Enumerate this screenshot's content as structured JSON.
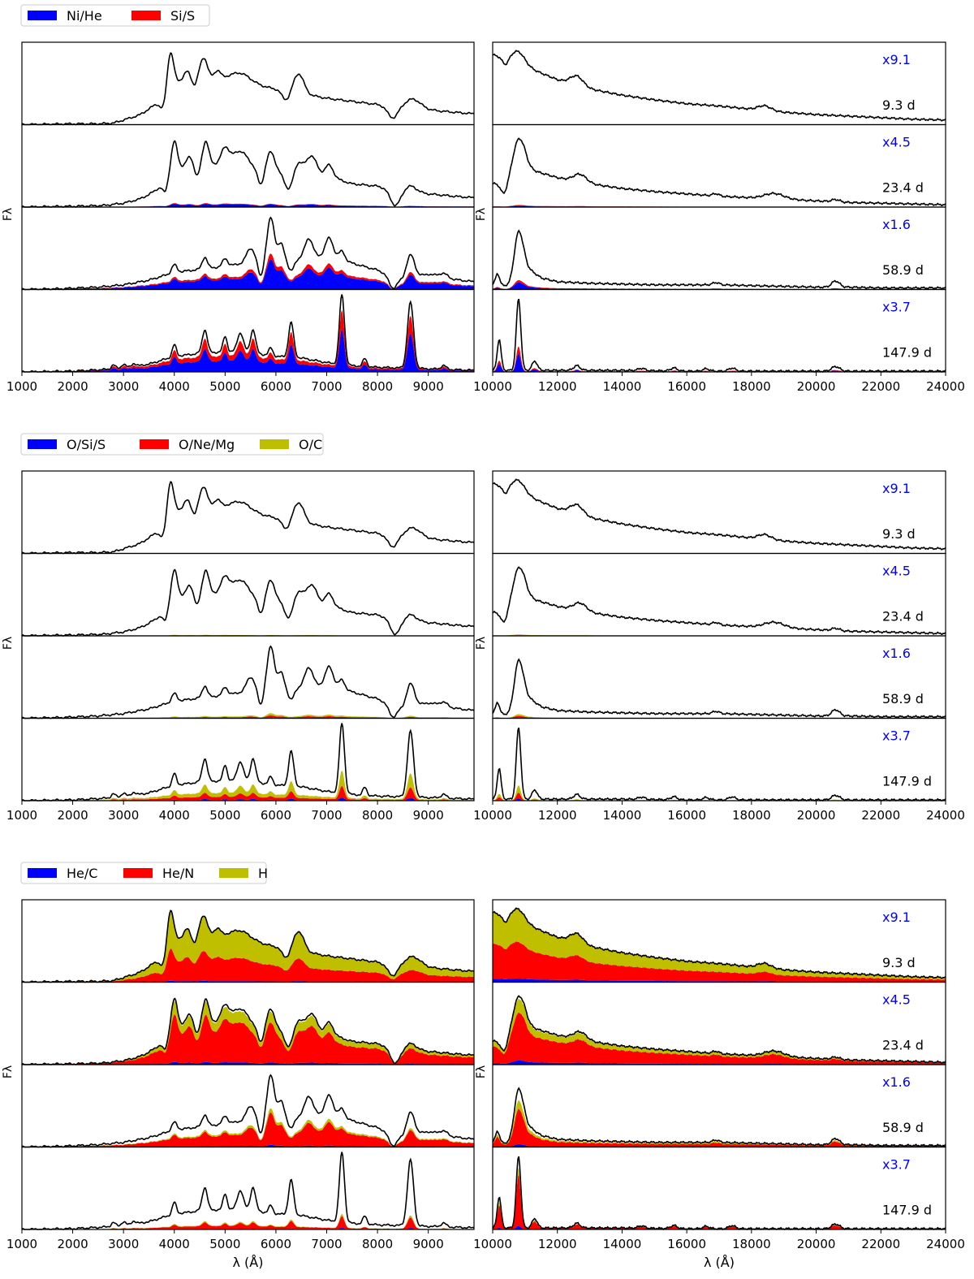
{
  "chart_data": {
    "type": "area",
    "description_text": {
      "ylabel": "Fλ",
      "xlabel": "λ (Å)"
    },
    "epochs": [
      {
        "epoch": "9.3 d",
        "scale": "x9.1"
      },
      {
        "epoch": "23.4 d",
        "scale": "x4.5"
      },
      {
        "epoch": "58.9 d",
        "scale": "x1.6"
      },
      {
        "epoch": "147.9 d",
        "scale": "x3.7"
      }
    ],
    "optical_axis": {
      "xlim": [
        1000,
        9900
      ],
      "ticks": [
        1000,
        2000,
        3000,
        4000,
        5000,
        6000,
        7000,
        8000,
        9000
      ]
    },
    "nir_axis": {
      "xlim": [
        10000,
        24000
      ],
      "ticks": [
        10000,
        12000,
        14000,
        16000,
        18000,
        20000,
        22000,
        24000
      ]
    },
    "colors": {
      "blue": "#0000ff",
      "red": "#ff0000",
      "olive": "#bfbf00",
      "line": "#000000",
      "scale_text": "#0000ff"
    },
    "groups": [
      {
        "legend": [
          {
            "label": "Ni/He",
            "color": "#0000ff"
          },
          {
            "label": "Si/S",
            "color": "#ff0000"
          }
        ],
        "stack_fraction": [
          [
            [
              0,
              0
            ],
            [
              0,
              0
            ]
          ],
          [
            [
              0.05,
              0.01
            ],
            [
              0.02,
              0.01
            ]
          ],
          [
            [
              0.42,
              0.08
            ],
            [
              0.12,
              0.04
            ]
          ],
          [
            [
              0.55,
              0.25
            ],
            [
              0.25,
              0.1
            ]
          ]
        ],
        "show_xlabel": false
      },
      {
        "legend": [
          {
            "label": "O/Si/S",
            "color": "#0000ff"
          },
          {
            "label": "O/Ne/Mg",
            "color": "#ff0000"
          },
          {
            "label": "O/C",
            "color": "#bfbf00"
          }
        ],
        "stack_fraction": [
          [
            [
              0,
              0,
              0
            ],
            [
              0,
              0,
              0
            ]
          ],
          [
            [
              0,
              0.005,
              0.01
            ],
            [
              0,
              0.01,
              0.01
            ]
          ],
          [
            [
              0.01,
              0.03,
              0.03
            ],
            [
              0.01,
              0.03,
              0.03
            ]
          ],
          [
            [
              0.04,
              0.15,
              0.2
            ],
            [
              0.03,
              0.08,
              0.1
            ]
          ]
        ],
        "show_xlabel": false
      },
      {
        "legend": [
          {
            "label": "He/C",
            "color": "#0000ff"
          },
          {
            "label": "He/N",
            "color": "#ff0000"
          },
          {
            "label": "H",
            "color": "#bfbf00"
          }
        ],
        "stack_fraction": [
          [
            [
              0.02,
              0.45,
              0.53
            ],
            [
              0.05,
              0.5,
              0.45
            ]
          ],
          [
            [
              0.04,
              0.72,
              0.2
            ],
            [
              0.06,
              0.7,
              0.2
            ]
          ],
          [
            [
              0.03,
              0.45,
              0.06
            ],
            [
              0.05,
              0.6,
              0.15
            ]
          ],
          [
            [
              0.02,
              0.15,
              0.03
            ],
            [
              0.05,
              0.7,
              0.1
            ]
          ]
        ],
        "show_xlabel": true
      }
    ],
    "spectra_optical": [
      {
        "continuum": [
          [
            1000,
            0.0
          ],
          [
            2000,
            0.01
          ],
          [
            2500,
            0.01
          ],
          [
            2800,
            0.02
          ],
          [
            3000,
            0.06
          ],
          [
            3300,
            0.12
          ],
          [
            3500,
            0.2
          ],
          [
            3700,
            0.3
          ],
          [
            4000,
            0.55
          ],
          [
            4500,
            0.62
          ],
          [
            5000,
            0.58
          ],
          [
            5500,
            0.52
          ],
          [
            6000,
            0.46
          ],
          [
            6500,
            0.4
          ],
          [
            7000,
            0.34
          ],
          [
            7500,
            0.3
          ],
          [
            8000,
            0.26
          ],
          [
            8500,
            0.22
          ],
          [
            9000,
            0.19
          ],
          [
            9500,
            0.16
          ],
          [
            9900,
            0.14
          ]
        ],
        "lines": [
          [
            3920,
            0.45,
            60
          ],
          [
            4250,
            0.1,
            60
          ],
          [
            4580,
            0.25,
            70
          ],
          [
            4850,
            0.1,
            60
          ],
          [
            5300,
            0.12,
            200
          ],
          [
            6450,
            0.25,
            100
          ],
          [
            8700,
            0.12,
            150
          ]
        ],
        "absorptions": [
          [
            3780,
            0.15,
            60
          ],
          [
            4400,
            0.1,
            50
          ],
          [
            6200,
            0.12,
            80
          ],
          [
            8300,
            0.15,
            100
          ]
        ]
      },
      {
        "continuum": [
          [
            1000,
            0.0
          ],
          [
            2000,
            0.01
          ],
          [
            2600,
            0.02
          ],
          [
            3000,
            0.05
          ],
          [
            3300,
            0.1
          ],
          [
            3500,
            0.16
          ],
          [
            3700,
            0.25
          ],
          [
            4000,
            0.5
          ],
          [
            4500,
            0.55
          ],
          [
            5000,
            0.55
          ],
          [
            5500,
            0.5
          ],
          [
            6000,
            0.45
          ],
          [
            6500,
            0.42
          ],
          [
            7000,
            0.4
          ],
          [
            7500,
            0.3
          ],
          [
            8000,
            0.27
          ],
          [
            8500,
            0.2
          ],
          [
            9000,
            0.17
          ],
          [
            9500,
            0.14
          ],
          [
            9900,
            0.12
          ]
        ],
        "lines": [
          [
            4000,
            0.35,
            60
          ],
          [
            4300,
            0.12,
            60
          ],
          [
            4620,
            0.3,
            60
          ],
          [
            5000,
            0.2,
            80
          ],
          [
            5300,
            0.2,
            150
          ],
          [
            5900,
            0.25,
            80
          ],
          [
            6450,
            0.15,
            80
          ],
          [
            6700,
            0.25,
            100
          ],
          [
            7050,
            0.15,
            80
          ],
          [
            8650,
            0.08,
            120
          ]
        ],
        "absorptions": [
          [
            3820,
            0.15,
            50
          ],
          [
            4450,
            0.15,
            50
          ],
          [
            5700,
            0.2,
            60
          ],
          [
            6250,
            0.2,
            80
          ],
          [
            8350,
            0.2,
            100
          ]
        ]
      },
      {
        "continuum": [
          [
            1000,
            0.0
          ],
          [
            1800,
            0.01
          ],
          [
            2500,
            0.03
          ],
          [
            3000,
            0.06
          ],
          [
            3500,
            0.12
          ],
          [
            4000,
            0.22
          ],
          [
            4500,
            0.26
          ],
          [
            5000,
            0.3
          ],
          [
            5500,
            0.35
          ],
          [
            6000,
            0.38
          ],
          [
            6500,
            0.4
          ],
          [
            7000,
            0.42
          ],
          [
            7500,
            0.34
          ],
          [
            8000,
            0.25
          ],
          [
            8500,
            0.12
          ],
          [
            9000,
            0.2
          ],
          [
            9500,
            0.13
          ],
          [
            9900,
            0.1
          ]
        ],
        "lines": [
          [
            4000,
            0.1,
            50
          ],
          [
            4600,
            0.15,
            50
          ],
          [
            5000,
            0.1,
            50
          ],
          [
            5500,
            0.18,
            80
          ],
          [
            5900,
            0.55,
            70
          ],
          [
            6100,
            0.2,
            60
          ],
          [
            6650,
            0.25,
            80
          ],
          [
            7050,
            0.25,
            80
          ],
          [
            7300,
            0.12,
            60
          ],
          [
            8650,
            0.3,
            80
          ],
          [
            9300,
            0.05,
            80
          ]
        ],
        "absorptions": [
          [
            5700,
            0.2,
            50
          ],
          [
            6300,
            0.15,
            60
          ],
          [
            8300,
            0.15,
            80
          ]
        ]
      },
      {
        "continuum": [
          [
            1000,
            0.0
          ],
          [
            2000,
            0.01
          ],
          [
            2600,
            0.03
          ],
          [
            3000,
            0.05
          ],
          [
            3500,
            0.1
          ],
          [
            4000,
            0.2
          ],
          [
            4500,
            0.24
          ],
          [
            5000,
            0.26
          ],
          [
            5500,
            0.25
          ],
          [
            6000,
            0.2
          ],
          [
            6500,
            0.18
          ],
          [
            7000,
            0.12
          ],
          [
            7500,
            0.08
          ],
          [
            8000,
            0.06
          ],
          [
            8500,
            0.05
          ],
          [
            9000,
            0.04
          ],
          [
            9500,
            0.03
          ],
          [
            9900,
            0.02
          ]
        ],
        "lines": [
          [
            2800,
            0.05,
            40
          ],
          [
            3000,
            0.05,
            40
          ],
          [
            3200,
            0.04,
            40
          ],
          [
            4000,
            0.15,
            40
          ],
          [
            4600,
            0.3,
            50
          ],
          [
            5000,
            0.2,
            40
          ],
          [
            5300,
            0.25,
            60
          ],
          [
            5550,
            0.3,
            50
          ],
          [
            5900,
            0.1,
            40
          ],
          [
            6300,
            0.45,
            50
          ],
          [
            7300,
            0.9,
            50
          ],
          [
            7750,
            0.1,
            40
          ],
          [
            8650,
            0.85,
            60
          ],
          [
            9300,
            0.05,
            50
          ]
        ],
        "absorptions": []
      }
    ],
    "spectra_nir": [
      {
        "continuum": [
          [
            10000,
            0.9
          ],
          [
            10500,
            0.85
          ],
          [
            11000,
            0.75
          ],
          [
            12000,
            0.58
          ],
          [
            13000,
            0.46
          ],
          [
            14000,
            0.38
          ],
          [
            15000,
            0.32
          ],
          [
            16000,
            0.27
          ],
          [
            17000,
            0.24
          ],
          [
            18000,
            0.2
          ],
          [
            19000,
            0.16
          ],
          [
            20000,
            0.13
          ],
          [
            21000,
            0.11
          ],
          [
            22000,
            0.09
          ],
          [
            23000,
            0.07
          ],
          [
            24000,
            0.06
          ]
        ],
        "lines": [
          [
            10800,
            0.15,
            200
          ],
          [
            12600,
            0.12,
            200
          ],
          [
            18400,
            0.06,
            200
          ]
        ],
        "absorptions": [
          [
            10400,
            0.1,
            100
          ]
        ]
      },
      {
        "continuum": [
          [
            10000,
            0.3
          ],
          [
            10500,
            0.32
          ],
          [
            11000,
            0.5
          ],
          [
            12000,
            0.38
          ],
          [
            13000,
            0.3
          ],
          [
            14000,
            0.24
          ],
          [
            15000,
            0.2
          ],
          [
            16000,
            0.17
          ],
          [
            17000,
            0.14
          ],
          [
            18000,
            0.12
          ],
          [
            19000,
            0.1
          ],
          [
            20000,
            0.08
          ],
          [
            21000,
            0.06
          ],
          [
            22000,
            0.05
          ],
          [
            23000,
            0.04
          ],
          [
            24000,
            0.03
          ]
        ],
        "lines": [
          [
            10800,
            0.45,
            180
          ],
          [
            12700,
            0.1,
            200
          ],
          [
            16900,
            0.03,
            100
          ],
          [
            18700,
            0.07,
            300
          ],
          [
            20600,
            0.03,
            120
          ]
        ],
        "absorptions": [
          [
            10350,
            0.15,
            100
          ]
        ]
      },
      {
        "continuum": [
          [
            10000,
            0.06
          ],
          [
            10500,
            0.05
          ],
          [
            11000,
            0.3
          ],
          [
            11500,
            0.15
          ],
          [
            12000,
            0.1
          ],
          [
            13000,
            0.08
          ],
          [
            14000,
            0.07
          ],
          [
            15000,
            0.06
          ],
          [
            16000,
            0.06
          ],
          [
            17000,
            0.06
          ],
          [
            18000,
            0.05
          ],
          [
            19000,
            0.04
          ],
          [
            20000,
            0.03
          ],
          [
            21000,
            0.03
          ],
          [
            22000,
            0.02
          ],
          [
            24000,
            0.02
          ]
        ],
        "lines": [
          [
            10150,
            0.15,
            60
          ],
          [
            10800,
            0.55,
            130
          ],
          [
            16900,
            0.03,
            100
          ],
          [
            20600,
            0.08,
            120
          ]
        ],
        "absorptions": []
      },
      {
        "continuum": [
          [
            10000,
            0.02
          ],
          [
            11000,
            0.02
          ],
          [
            12000,
            0.02
          ],
          [
            14000,
            0.02
          ],
          [
            16000,
            0.01
          ],
          [
            18000,
            0.01
          ],
          [
            20000,
            0.01
          ],
          [
            24000,
            0.01
          ]
        ],
        "lines": [
          [
            10200,
            0.4,
            60
          ],
          [
            10800,
            0.92,
            70
          ],
          [
            11300,
            0.12,
            80
          ],
          [
            12600,
            0.06,
            100
          ],
          [
            14600,
            0.03,
            100
          ],
          [
            15600,
            0.04,
            100
          ],
          [
            16600,
            0.03,
            100
          ],
          [
            17400,
            0.04,
            100
          ],
          [
            20600,
            0.06,
            120
          ]
        ],
        "absorptions": []
      }
    ]
  }
}
